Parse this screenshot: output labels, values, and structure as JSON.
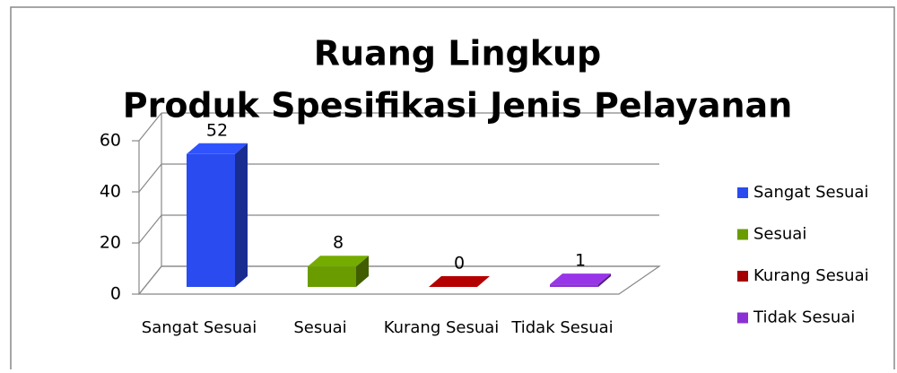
{
  "chart_data": {
    "type": "bar3d",
    "title": "Ruang Lingkup",
    "subtitle": "Produk Spesifikasi Jenis Pelayanan",
    "categories": [
      "Sangat Sesuai",
      "Sesuai",
      "Kurang Sesuai",
      "Tidak Sesuai"
    ],
    "values": [
      52,
      8,
      0,
      1
    ],
    "colors": [
      "#2a4bf0",
      "#6a9c00",
      "#a40000",
      "#8a30d4"
    ],
    "ylim": [
      0,
      60
    ],
    "yticks": [
      0,
      20,
      40,
      60
    ],
    "grid": true,
    "legend": "right"
  }
}
